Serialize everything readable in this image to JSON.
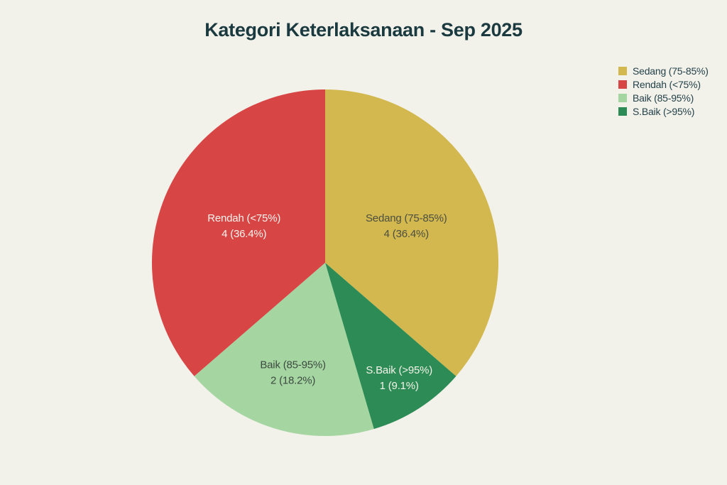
{
  "chart_data": {
    "type": "pie",
    "title": "Kategori Keterlaksanaan - Sep 2025",
    "total": 11,
    "slices": [
      {
        "name": "sedang",
        "label": "Sedang (75-85%)",
        "value": 4,
        "pct": 36.4,
        "value_label": "4 (36.4%)",
        "color": "#d2b84f",
        "label_color": "#4c4e40"
      },
      {
        "name": "sbaik",
        "label": "S.Baik (>95%)",
        "value": 1,
        "pct": 9.1,
        "value_label": "1 (9.1%)",
        "color": "#2d8c55",
        "label_color": "#f4f2ea"
      },
      {
        "name": "baik",
        "label": "Baik (85-95%)",
        "value": 2,
        "pct": 18.2,
        "value_label": "2 (18.2%)",
        "color": "#a5d6a2",
        "label_color": "#3d4a41"
      },
      {
        "name": "rendah",
        "label": "Rendah (<75%)",
        "value": 4,
        "pct": 36.4,
        "value_label": "4 (36.4%)",
        "color": "#d84545",
        "label_color": "#f8f5ef"
      }
    ],
    "legend": [
      {
        "label": "Sedang (75-85%)",
        "color": "#d2b84f"
      },
      {
        "label": "Rendah (<75%)",
        "color": "#d84545"
      },
      {
        "label": "Baik (85-95%)",
        "color": "#a5d6a2"
      },
      {
        "label": "S.Baik (>95%)",
        "color": "#2d8c55"
      }
    ],
    "legend_position": "top-right",
    "colors": {
      "background": "#f2f1ea",
      "title_text": "#1a3a40",
      "legend_text": "#24424a"
    }
  }
}
